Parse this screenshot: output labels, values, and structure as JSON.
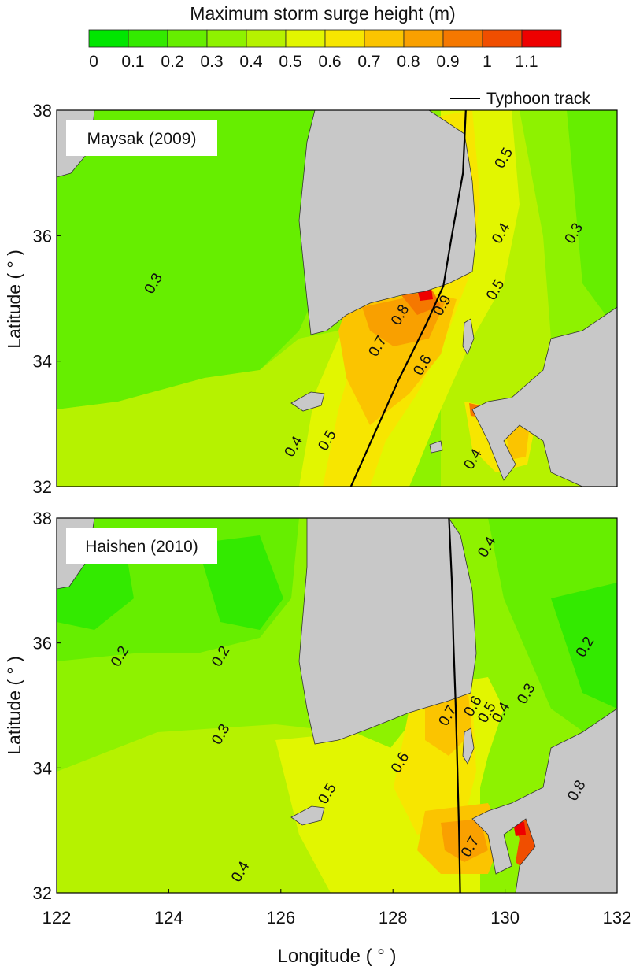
{
  "colorbar": {
    "title": "Maximum storm surge height (m)",
    "tick_labels": [
      "0",
      "0.1",
      "0.2",
      "0.3",
      "0.4",
      "0.5",
      "0.6",
      "0.7",
      "0.8",
      "0.9",
      "1",
      "1.1"
    ],
    "colors": [
      "#00e600",
      "#33ea00",
      "#66ee00",
      "#8ef200",
      "#b6f200",
      "#e2f600",
      "#f7e600",
      "#fbc400",
      "#f9a000",
      "#f57800",
      "#f04e00",
      "#ee0000"
    ]
  },
  "legend": {
    "label": "Typhoon track",
    "line_color": "#000000"
  },
  "axes": {
    "xlabel": "Longitude ( ° )",
    "ylabel": "Latitude ( ° )",
    "xticks": [
      "122",
      "124",
      "126",
      "128",
      "130",
      "132"
    ],
    "yticks": [
      "32",
      "34",
      "36",
      "38"
    ]
  },
  "chart_data": [
    {
      "type": "heatmap",
      "title": "Maysak (2009)",
      "xlim": [
        122,
        132
      ],
      "ylim": [
        32,
        38
      ],
      "x_ticks": [
        122,
        124,
        126,
        128,
        130,
        132
      ],
      "y_ticks": [
        32,
        34,
        36,
        38
      ],
      "units": "m",
      "levels": [
        0,
        0.1,
        0.2,
        0.3,
        0.4,
        0.5,
        0.6,
        0.7,
        0.8,
        0.9,
        1.0,
        1.1
      ],
      "track": [
        [
          129.3,
          38
        ],
        [
          129.25,
          37
        ],
        [
          129.05,
          36
        ],
        [
          128.9,
          35.2
        ],
        [
          128.6,
          34.6
        ],
        [
          128.1,
          33.7
        ],
        [
          127.6,
          32.7
        ],
        [
          127.25,
          32
        ]
      ],
      "contour_labels": [
        {
          "text": "0.3",
          "lon": 123.8,
          "lat": 35.2
        },
        {
          "text": "0.5",
          "lon": 130.05,
          "lat": 37.2
        },
        {
          "text": "0.4",
          "lon": 130.0,
          "lat": 36.0
        },
        {
          "text": "0.3",
          "lon": 131.3,
          "lat": 36.0
        },
        {
          "text": "0.5",
          "lon": 129.9,
          "lat": 35.1
        },
        {
          "text": "0.8",
          "lon": 128.2,
          "lat": 34.7
        },
        {
          "text": "0.9",
          "lon": 128.95,
          "lat": 34.85
        },
        {
          "text": "0.7",
          "lon": 127.8,
          "lat": 34.2
        },
        {
          "text": "0.6",
          "lon": 128.6,
          "lat": 33.9
        },
        {
          "text": "0.4",
          "lon": 126.3,
          "lat": 32.6
        },
        {
          "text": "0.5",
          "lon": 126.9,
          "lat": 32.7
        },
        {
          "text": "0.4",
          "lon": 129.5,
          "lat": 32.4
        }
      ]
    },
    {
      "type": "heatmap",
      "title": "Haishen (2010)",
      "xlim": [
        122,
        132
      ],
      "ylim": [
        32,
        38
      ],
      "x_ticks": [
        122,
        124,
        126,
        128,
        130,
        132
      ],
      "y_ticks": [
        32,
        34,
        36,
        38
      ],
      "units": "m",
      "levels": [
        0,
        0.1,
        0.2,
        0.3,
        0.4,
        0.5,
        0.6,
        0.7,
        0.8,
        0.9,
        1.0,
        1.1
      ],
      "track": [
        [
          129.0,
          38
        ],
        [
          129.05,
          37
        ],
        [
          129.08,
          36
        ],
        [
          129.12,
          35
        ],
        [
          129.15,
          34
        ],
        [
          129.18,
          33
        ],
        [
          129.2,
          32
        ]
      ],
      "contour_labels": [
        {
          "text": "0.2",
          "lon": 123.2,
          "lat": 35.75
        },
        {
          "text": "0.2",
          "lon": 125.0,
          "lat": 35.75
        },
        {
          "text": "0.4",
          "lon": 129.75,
          "lat": 37.5
        },
        {
          "text": "0.2",
          "lon": 131.5,
          "lat": 35.9
        },
        {
          "text": "0.3",
          "lon": 130.45,
          "lat": 35.15
        },
        {
          "text": "0.3",
          "lon": 125.0,
          "lat": 34.5
        },
        {
          "text": "0.4",
          "lon": 130.0,
          "lat": 34.85
        },
        {
          "text": "0.5",
          "lon": 129.75,
          "lat": 34.85
        },
        {
          "text": "0.6",
          "lon": 129.5,
          "lat": 34.95
        },
        {
          "text": "0.7",
          "lon": 129.05,
          "lat": 34.8
        },
        {
          "text": "0.6",
          "lon": 128.2,
          "lat": 34.05
        },
        {
          "text": "0.5",
          "lon": 126.9,
          "lat": 33.55
        },
        {
          "text": "0.7",
          "lon": 129.45,
          "lat": 32.7
        },
        {
          "text": "0.8",
          "lon": 131.35,
          "lat": 33.6
        },
        {
          "text": "0.4",
          "lon": 125.35,
          "lat": 32.3
        }
      ]
    }
  ]
}
